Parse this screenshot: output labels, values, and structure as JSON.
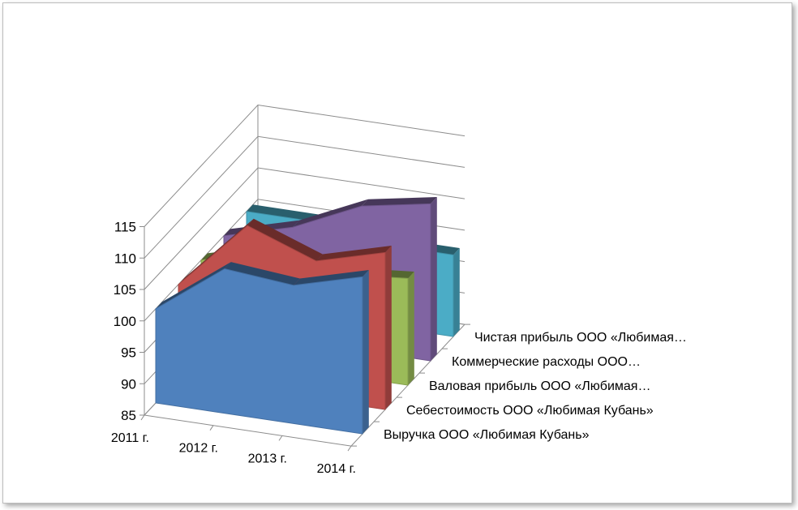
{
  "chart_data": {
    "type": "area",
    "title": "",
    "xlabel": "",
    "ylabel": "",
    "x": [
      "2011 г.",
      "2012 г.",
      "2013 г.",
      "2014 г."
    ],
    "ylim": [
      85,
      115
    ],
    "yticks": [
      "85",
      "90",
      "95",
      "100",
      "105",
      "110",
      "115"
    ],
    "grid": true,
    "legend": "series labels on depth axis",
    "series": [
      {
        "name": "Выручка ООО «Любимая Кубань»",
        "color": "#4f81bd",
        "values": [
          100,
          108,
          107,
          110
        ]
      },
      {
        "name": "Себестоимость ООО «Любимая Кубань»",
        "color": "#c0504d",
        "values": [
          100,
          111,
          107,
          110
        ]
      },
      {
        "name": "Валовая прибыль ООО «Любимая…",
        "color": "#9bbb59",
        "values": [
          100,
          103,
          101,
          102
        ]
      },
      {
        "name": "Коммерческие расходы ООО…",
        "color": "#8064a2",
        "values": [
          100,
          103,
          108,
          110
        ]
      },
      {
        "name": "Чистая прибыль ООО «Любимая…",
        "color": "#4bacc6",
        "values": [
          100,
          100,
          98,
          98
        ]
      }
    ]
  }
}
